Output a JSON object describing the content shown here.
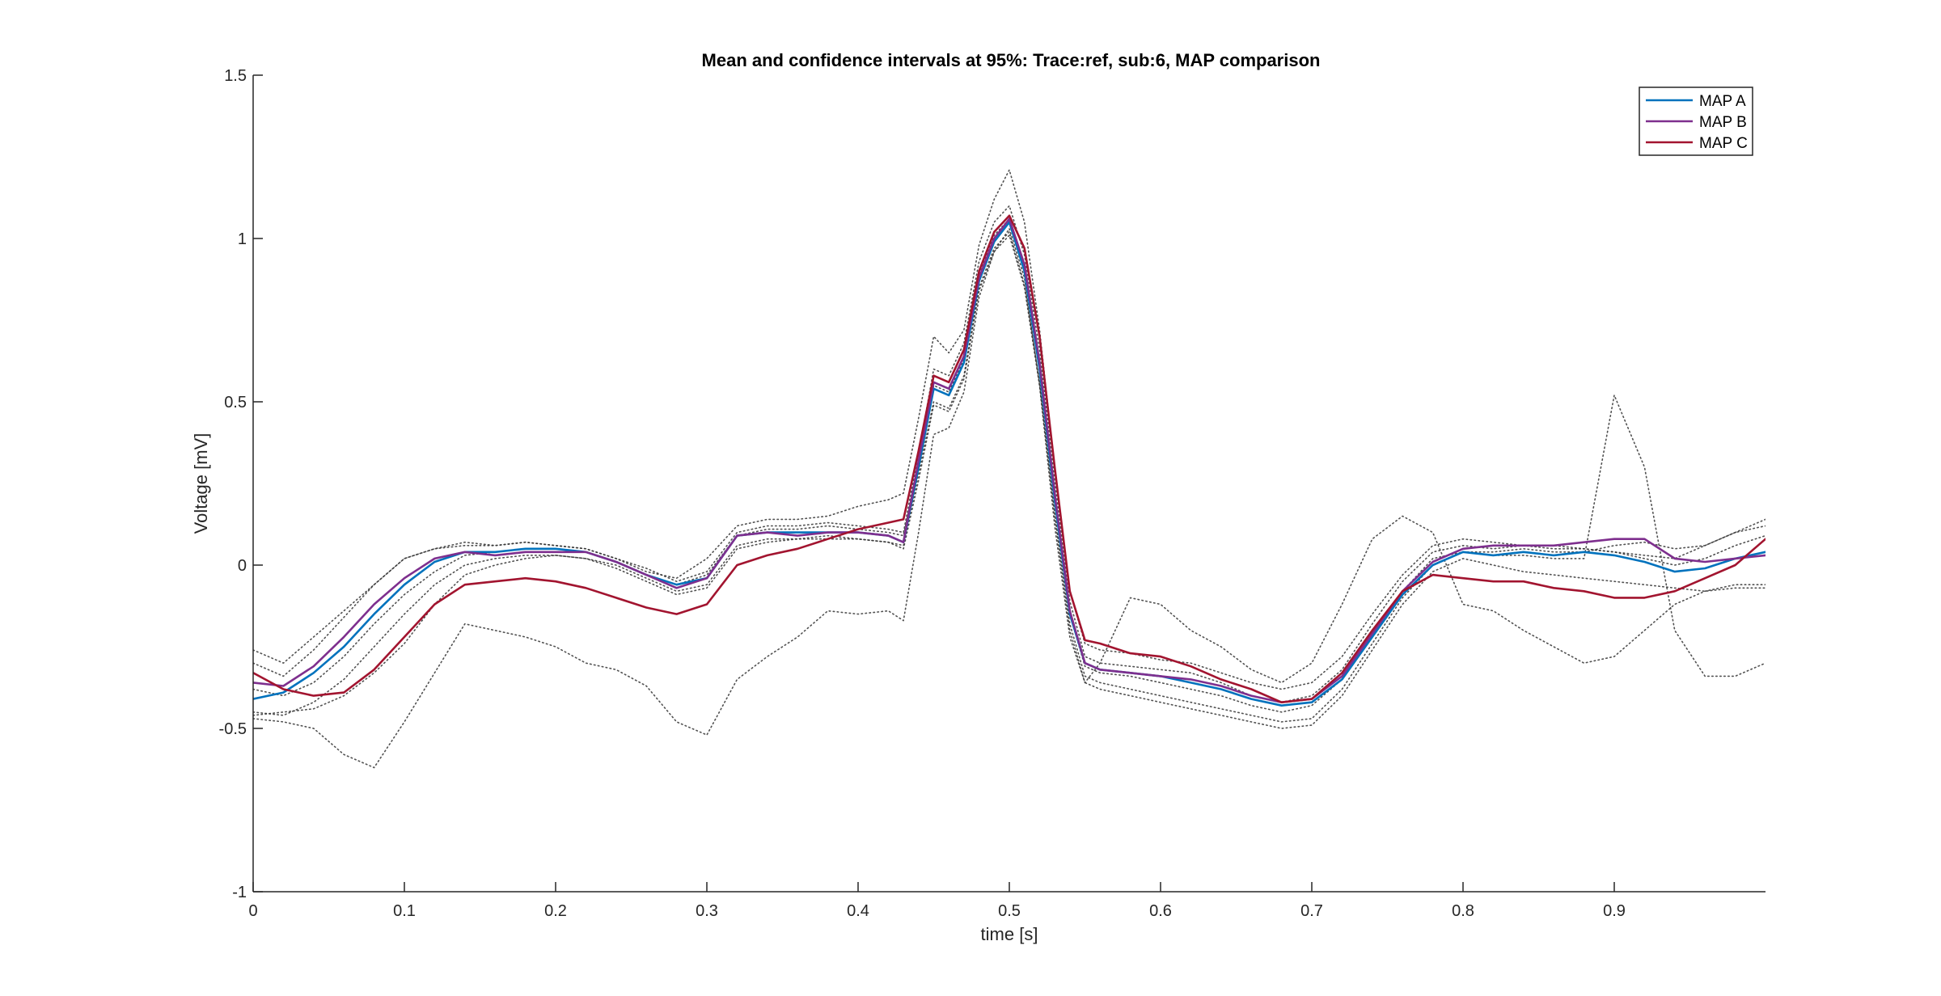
{
  "chart_data": {
    "type": "line",
    "title": "Mean and confidence intervals at 95%: Trace:ref, sub:6, MAP comparison",
    "xlabel": "time [s]",
    "ylabel": "Voltage [mV]",
    "xlim": [
      0,
      1
    ],
    "ylim": [
      -1,
      1.5
    ],
    "xticks": [
      0,
      0.1,
      0.2,
      0.3,
      0.4,
      0.5,
      0.6,
      0.7,
      0.8,
      0.9
    ],
    "xtick_labels": [
      "0",
      "0.1",
      "0.2",
      "0.3",
      "0.4",
      "0.5",
      "0.6",
      "0.7",
      "0.8",
      "0.9"
    ],
    "yticks": [
      -1,
      -0.5,
      0,
      0.5,
      1,
      1.5
    ],
    "ytick_labels": [
      "-1",
      "-0.5",
      "0",
      "0.5",
      "1",
      "1.5"
    ],
    "grid": false,
    "legend_position": "top-right",
    "x": [
      0,
      0.02,
      0.04,
      0.06,
      0.08,
      0.1,
      0.12,
      0.14,
      0.16,
      0.18,
      0.2,
      0.22,
      0.24,
      0.26,
      0.28,
      0.3,
      0.32,
      0.34,
      0.36,
      0.38,
      0.4,
      0.42,
      0.43,
      0.44,
      0.45,
      0.46,
      0.47,
      0.48,
      0.49,
      0.5,
      0.51,
      0.52,
      0.53,
      0.54,
      0.55,
      0.56,
      0.58,
      0.6,
      0.62,
      0.64,
      0.66,
      0.68,
      0.7,
      0.72,
      0.74,
      0.76,
      0.78,
      0.8,
      0.82,
      0.84,
      0.86,
      0.88,
      0.9,
      0.92,
      0.94,
      0.96,
      0.98,
      1.0
    ],
    "series": [
      {
        "name": "MAP A",
        "color": "#0072BD",
        "values": [
          -0.41,
          -0.39,
          -0.33,
          -0.25,
          -0.15,
          -0.06,
          0.01,
          0.04,
          0.04,
          0.05,
          0.05,
          0.04,
          0.01,
          -0.03,
          -0.06,
          -0.04,
          0.09,
          0.1,
          0.1,
          0.1,
          0.1,
          0.09,
          0.07,
          0.3,
          0.54,
          0.52,
          0.62,
          0.87,
          0.99,
          1.05,
          0.9,
          0.6,
          0.2,
          -0.15,
          -0.3,
          -0.32,
          -0.33,
          -0.34,
          -0.36,
          -0.38,
          -0.41,
          -0.43,
          -0.42,
          -0.35,
          -0.22,
          -0.09,
          0.0,
          0.04,
          0.03,
          0.04,
          0.03,
          0.04,
          0.03,
          0.01,
          -0.02,
          -0.01,
          0.02,
          0.04
        ]
      },
      {
        "name": "MAP B",
        "color": "#7E2F8E",
        "values": [
          -0.36,
          -0.37,
          -0.31,
          -0.22,
          -0.12,
          -0.04,
          0.02,
          0.04,
          0.03,
          0.04,
          0.04,
          0.04,
          0.01,
          -0.03,
          -0.07,
          -0.04,
          0.09,
          0.1,
          0.09,
          0.1,
          0.1,
          0.09,
          0.07,
          0.32,
          0.56,
          0.54,
          0.64,
          0.88,
          1.0,
          1.06,
          0.92,
          0.62,
          0.22,
          -0.14,
          -0.3,
          -0.32,
          -0.33,
          -0.34,
          -0.35,
          -0.37,
          -0.4,
          -0.42,
          -0.41,
          -0.34,
          -0.21,
          -0.08,
          0.01,
          0.05,
          0.06,
          0.06,
          0.06,
          0.07,
          0.08,
          0.08,
          0.02,
          0.01,
          0.02,
          0.03
        ]
      },
      {
        "name": "MAP C",
        "color": "#A2142F",
        "values": [
          -0.33,
          -0.38,
          -0.4,
          -0.39,
          -0.32,
          -0.22,
          -0.12,
          -0.06,
          -0.05,
          -0.04,
          -0.05,
          -0.07,
          -0.1,
          -0.13,
          -0.15,
          -0.12,
          0.0,
          0.03,
          0.05,
          0.08,
          0.11,
          0.13,
          0.14,
          0.35,
          0.58,
          0.56,
          0.66,
          0.9,
          1.02,
          1.07,
          0.97,
          0.7,
          0.3,
          -0.08,
          -0.23,
          -0.24,
          -0.27,
          -0.28,
          -0.31,
          -0.35,
          -0.38,
          -0.42,
          -0.41,
          -0.33,
          -0.2,
          -0.08,
          -0.03,
          -0.04,
          -0.05,
          -0.05,
          -0.07,
          -0.08,
          -0.1,
          -0.1,
          -0.08,
          -0.04,
          0.0,
          0.08
        ]
      },
      {
        "color": "#333333",
        "dotted": true,
        "values": [
          -0.26,
          -0.3,
          -0.22,
          -0.14,
          -0.06,
          0.02,
          0.05,
          0.07,
          0.06,
          0.07,
          0.06,
          0.05,
          0.02,
          -0.02,
          -0.04,
          0.02,
          0.12,
          0.14,
          0.14,
          0.15,
          0.18,
          0.2,
          0.22,
          0.45,
          0.7,
          0.65,
          0.72,
          0.98,
          1.12,
          1.21,
          1.05,
          0.72,
          0.3,
          -0.08,
          -0.24,
          -0.26,
          -0.27,
          -0.29,
          -0.3,
          -0.33,
          -0.36,
          -0.38,
          -0.36,
          -0.28,
          -0.15,
          -0.03,
          0.06,
          0.08,
          0.07,
          0.06,
          0.06,
          0.05,
          0.04,
          0.03,
          0.02,
          0.06,
          0.1,
          0.14
        ]
      },
      {
        "color": "#333333",
        "dotted": true,
        "values": [
          -0.47,
          -0.48,
          -0.5,
          -0.58,
          -0.62,
          -0.48,
          -0.33,
          -0.18,
          -0.2,
          -0.22,
          -0.25,
          -0.3,
          -0.32,
          -0.37,
          -0.48,
          -0.52,
          -0.35,
          -0.28,
          -0.22,
          -0.14,
          -0.15,
          -0.14,
          -0.17,
          0.1,
          0.4,
          0.42,
          0.53,
          0.82,
          0.96,
          1.03,
          0.88,
          0.55,
          0.12,
          -0.22,
          -0.36,
          -0.3,
          -0.1,
          -0.12,
          -0.2,
          -0.25,
          -0.32,
          -0.36,
          -0.3,
          -0.12,
          0.08,
          0.15,
          0.1,
          -0.12,
          -0.14,
          -0.2,
          -0.25,
          -0.3,
          -0.28,
          -0.2,
          -0.12,
          -0.08,
          -0.06,
          -0.06
        ]
      },
      {
        "color": "#333333",
        "dotted": true,
        "values": [
          -0.45,
          -0.46,
          -0.42,
          -0.35,
          -0.25,
          -0.15,
          -0.06,
          0.0,
          0.02,
          0.03,
          0.03,
          0.02,
          0.0,
          -0.04,
          -0.08,
          -0.06,
          0.06,
          0.08,
          0.08,
          0.09,
          0.08,
          0.07,
          0.06,
          0.28,
          0.5,
          0.48,
          0.58,
          0.85,
          0.97,
          1.02,
          0.86,
          0.56,
          0.16,
          -0.18,
          -0.34,
          -0.36,
          -0.38,
          -0.4,
          -0.42,
          -0.44,
          -0.46,
          -0.48,
          -0.47,
          -0.38,
          -0.24,
          -0.1,
          0.0,
          0.04,
          0.03,
          0.03,
          0.02,
          0.02,
          0.52,
          0.3,
          -0.2,
          -0.34,
          -0.34,
          -0.3
        ]
      },
      {
        "color": "#333333",
        "dotted": true,
        "values": [
          -0.3,
          -0.34,
          -0.26,
          -0.16,
          -0.06,
          0.02,
          0.05,
          0.06,
          0.06,
          0.07,
          0.06,
          0.05,
          0.02,
          -0.01,
          -0.05,
          -0.02,
          0.1,
          0.12,
          0.12,
          0.13,
          0.12,
          0.11,
          0.1,
          0.34,
          0.6,
          0.58,
          0.68,
          0.93,
          1.05,
          1.1,
          0.95,
          0.66,
          0.26,
          -0.11,
          -0.28,
          -0.3,
          -0.31,
          -0.32,
          -0.33,
          -0.36,
          -0.4,
          -0.42,
          -0.4,
          -0.32,
          -0.18,
          -0.05,
          0.04,
          0.06,
          0.05,
          0.06,
          0.05,
          0.05,
          0.04,
          0.02,
          0.0,
          0.02,
          0.06,
          0.09
        ]
      },
      {
        "color": "#333333",
        "dotted": true,
        "values": [
          -0.46,
          -0.45,
          -0.44,
          -0.4,
          -0.33,
          -0.24,
          -0.12,
          -0.03,
          0.0,
          0.02,
          0.03,
          0.02,
          -0.01,
          -0.05,
          -0.09,
          -0.07,
          0.05,
          0.07,
          0.08,
          0.08,
          0.08,
          0.07,
          0.05,
          0.26,
          0.49,
          0.47,
          0.57,
          0.84,
          0.96,
          1.01,
          0.85,
          0.55,
          0.15,
          -0.2,
          -0.36,
          -0.38,
          -0.4,
          -0.42,
          -0.44,
          -0.46,
          -0.48,
          -0.5,
          -0.49,
          -0.4,
          -0.26,
          -0.12,
          -0.02,
          0.02,
          0.0,
          -0.02,
          -0.03,
          -0.04,
          -0.05,
          -0.06,
          -0.07,
          -0.08,
          -0.07,
          -0.07
        ]
      },
      {
        "color": "#333333",
        "dotted": true,
        "values": [
          -0.38,
          -0.4,
          -0.36,
          -0.28,
          -0.18,
          -0.09,
          -0.02,
          0.03,
          0.04,
          0.05,
          0.05,
          0.04,
          0.01,
          -0.03,
          -0.06,
          -0.03,
          0.09,
          0.11,
          0.11,
          0.12,
          0.11,
          0.1,
          0.09,
          0.31,
          0.55,
          0.53,
          0.63,
          0.89,
          1.01,
          1.06,
          0.91,
          0.61,
          0.21,
          -0.15,
          -0.31,
          -0.33,
          -0.34,
          -0.36,
          -0.38,
          -0.4,
          -0.43,
          -0.45,
          -0.43,
          -0.35,
          -0.22,
          -0.08,
          0.02,
          0.04,
          0.04,
          0.05,
          0.04,
          0.04,
          0.06,
          0.07,
          0.05,
          0.06,
          0.1,
          0.12
        ]
      }
    ]
  }
}
